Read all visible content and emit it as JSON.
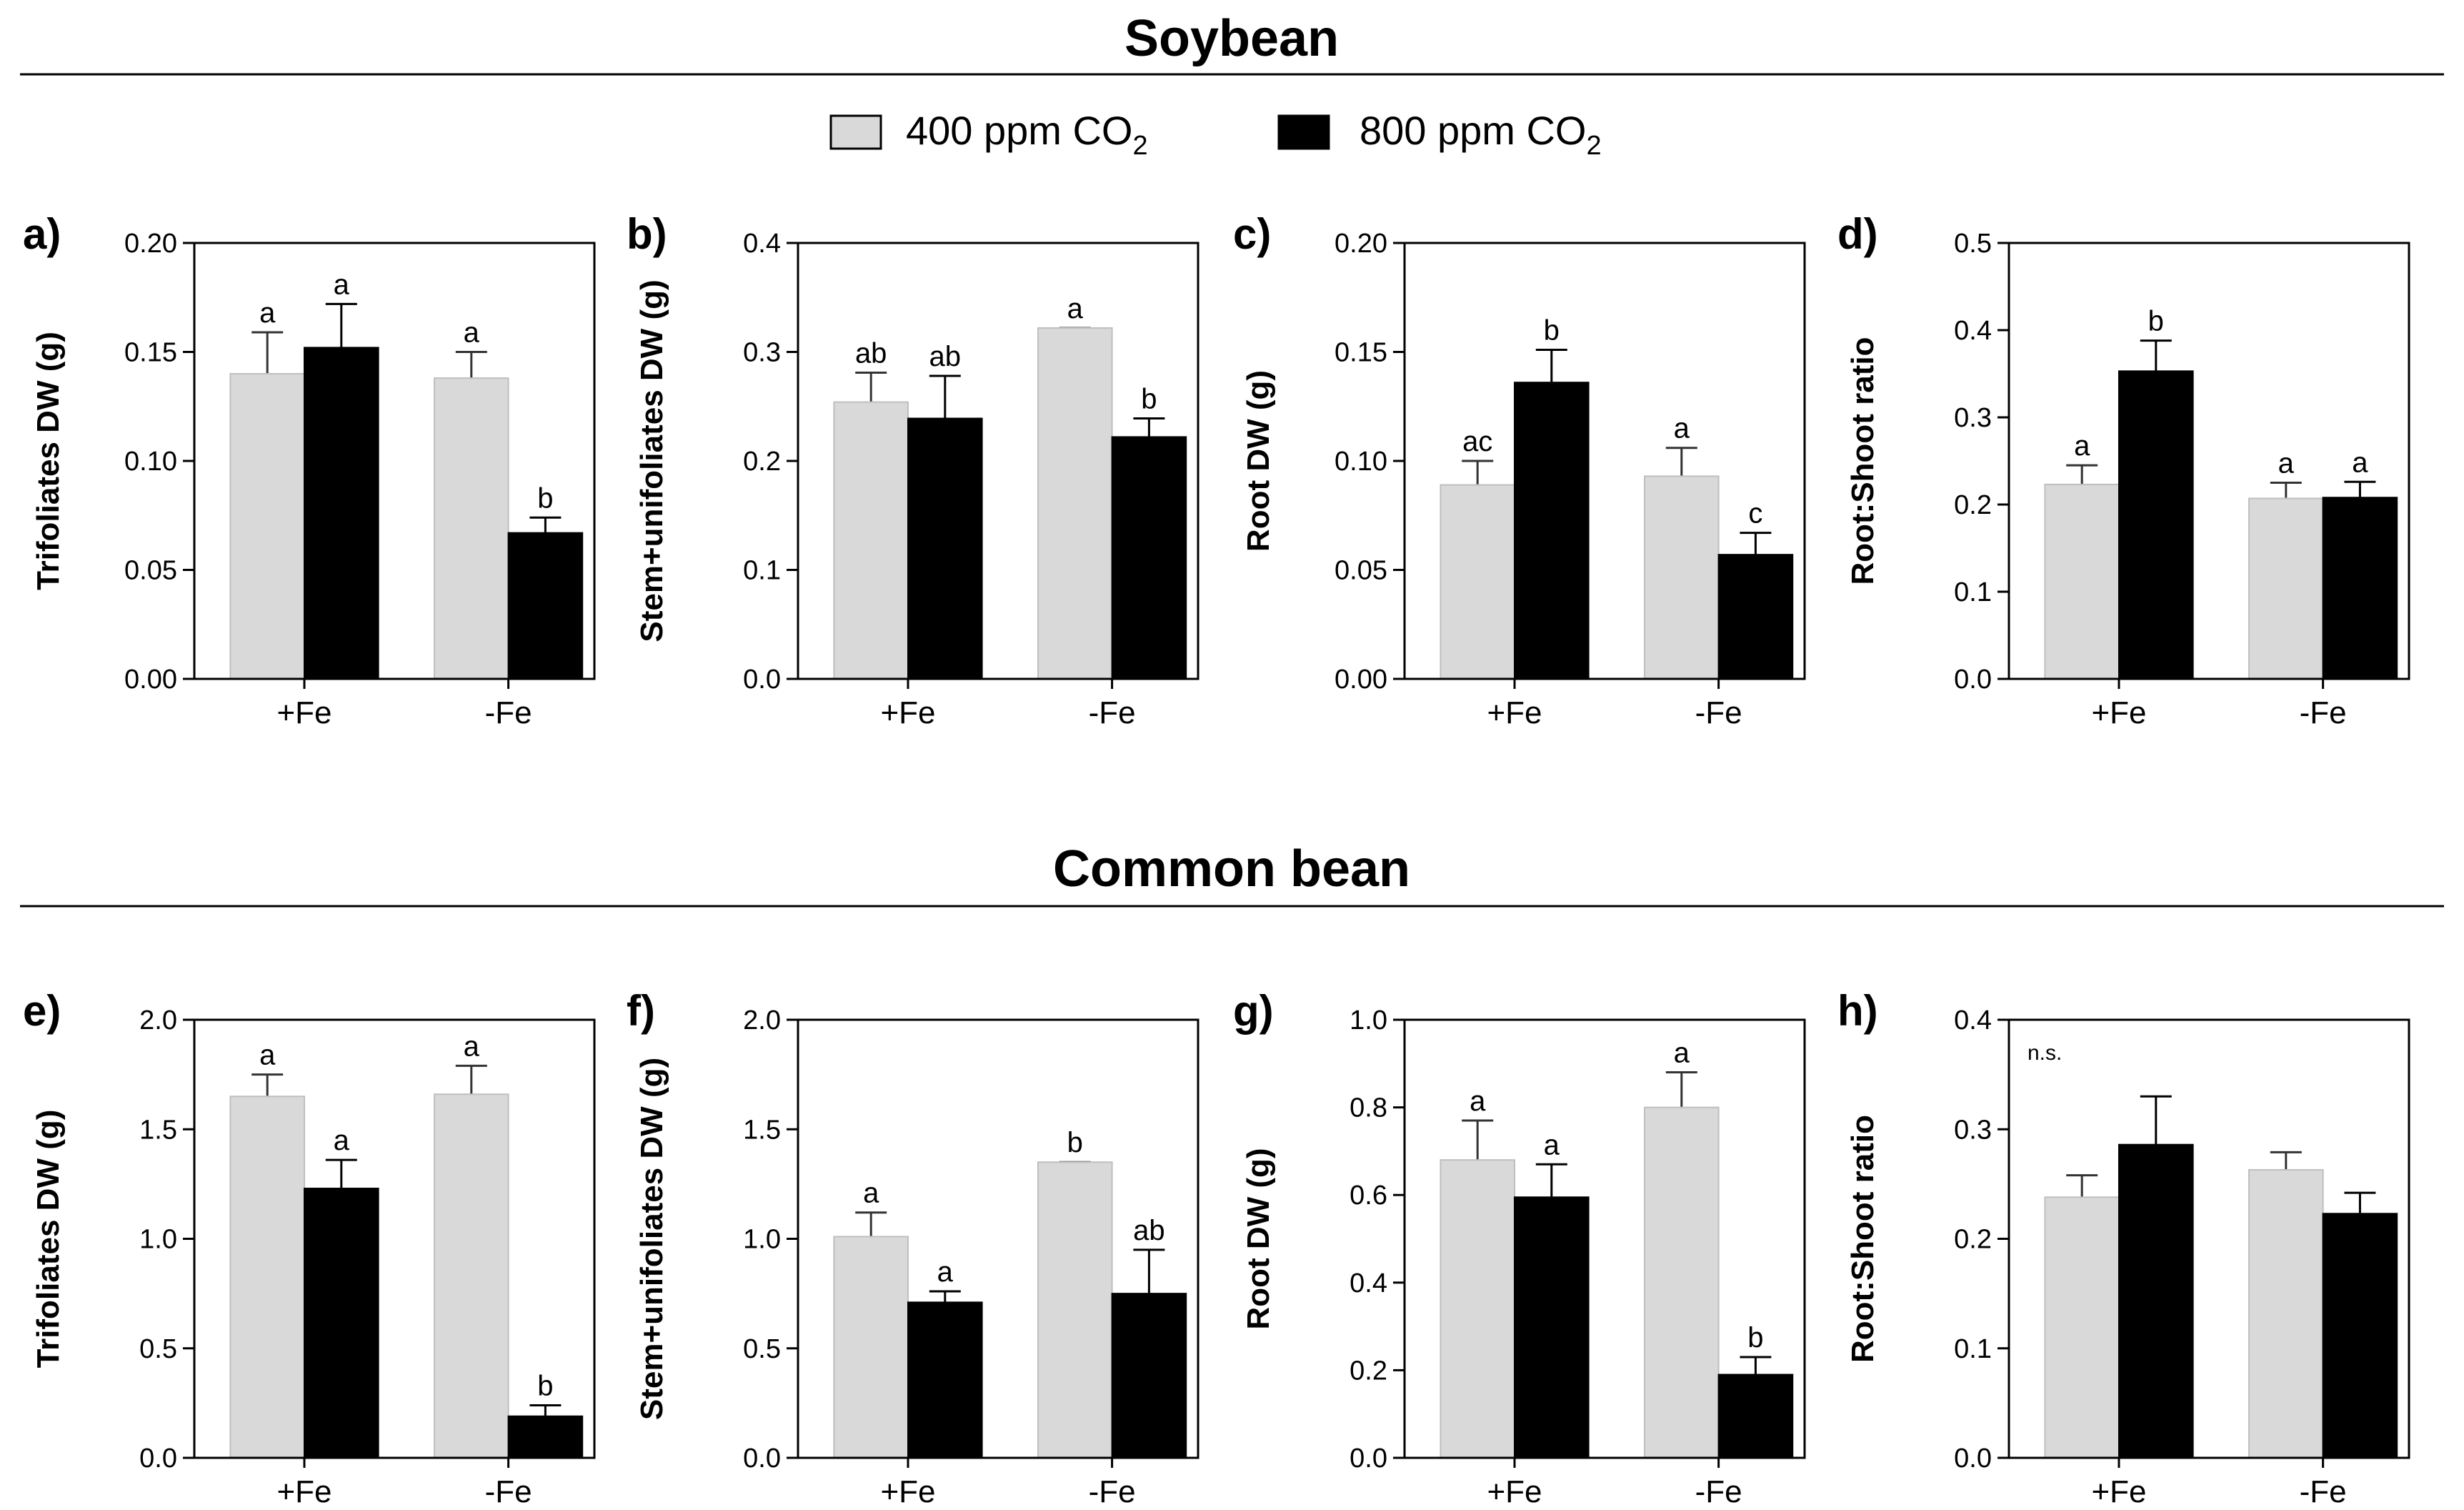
{
  "figure": {
    "sections": [
      {
        "title": "Soybean"
      },
      {
        "title": "Common bean"
      }
    ],
    "legend": {
      "items": [
        {
          "label": "400 ppm CO",
          "subscript": "2",
          "color": "#d9d9d9"
        },
        {
          "label": "800 ppm CO",
          "subscript": "2",
          "color": "#000000"
        }
      ]
    }
  },
  "chart_data": [
    {
      "panel": "a)",
      "type": "bar",
      "categories": [
        "+Fe",
        "-Fe"
      ],
      "ylabel": "Trifoliates DW (g)",
      "ylim": [
        0,
        0.2
      ],
      "ticks": [
        "0.00",
        "0.05",
        "0.10",
        "0.15",
        "0.20"
      ],
      "series": [
        {
          "values": [
            0.14,
            0.138
          ],
          "errors": [
            0.019,
            0.012
          ],
          "labels": [
            "a",
            "a"
          ]
        },
        {
          "values": [
            0.152,
            0.067
          ],
          "errors": [
            0.02,
            0.007
          ],
          "labels": [
            "a",
            "b"
          ]
        }
      ]
    },
    {
      "panel": "b)",
      "type": "bar",
      "categories": [
        "+Fe",
        "-Fe"
      ],
      "ylabel": "Stem+unifoliates DW (g)",
      "ylim": [
        0,
        0.4
      ],
      "ticks": [
        "0.0",
        "0.1",
        "0.2",
        "0.3",
        "0.4"
      ],
      "series": [
        {
          "values": [
            0.254,
            0.322
          ],
          "errors": [
            0.027,
            0.0
          ],
          "labels": [
            "ab",
            "a"
          ]
        },
        {
          "values": [
            0.239,
            0.222
          ],
          "errors": [
            0.039,
            0.017
          ],
          "labels": [
            "ab",
            "b"
          ]
        }
      ]
    },
    {
      "panel": "c)",
      "type": "bar",
      "categories": [
        "+Fe",
        "-Fe"
      ],
      "ylabel": "Root DW (g)",
      "ylim": [
        0,
        0.2
      ],
      "ticks": [
        "0.00",
        "0.05",
        "0.10",
        "0.15",
        "0.20"
      ],
      "series": [
        {
          "values": [
            0.089,
            0.093
          ],
          "errors": [
            0.011,
            0.013
          ],
          "labels": [
            "ac",
            "a"
          ]
        },
        {
          "values": [
            0.136,
            0.057
          ],
          "errors": [
            0.015,
            0.01
          ],
          "labels": [
            "b",
            "c"
          ]
        }
      ]
    },
    {
      "panel": "d)",
      "type": "bar",
      "categories": [
        "+Fe",
        "-Fe"
      ],
      "ylabel": "Root:Shoot ratio",
      "ylim": [
        0,
        0.5
      ],
      "ticks": [
        "0.0",
        "0.1",
        "0.2",
        "0.3",
        "0.4",
        "0.5"
      ],
      "series": [
        {
          "values": [
            0.223,
            0.207
          ],
          "errors": [
            0.022,
            0.018
          ],
          "labels": [
            "a",
            "a"
          ]
        },
        {
          "values": [
            0.353,
            0.208
          ],
          "errors": [
            0.035,
            0.018
          ],
          "labels": [
            "b",
            "a"
          ]
        }
      ]
    },
    {
      "panel": "e)",
      "type": "bar",
      "categories": [
        "+Fe",
        "-Fe"
      ],
      "ylabel": "Trifoliates DW (g)",
      "ylim": [
        0,
        2.0
      ],
      "ticks": [
        "0.0",
        "0.5",
        "1.0",
        "1.5",
        "2.0"
      ],
      "series": [
        {
          "values": [
            1.65,
            1.66
          ],
          "errors": [
            0.1,
            0.13
          ],
          "labels": [
            "a",
            "a"
          ]
        },
        {
          "values": [
            1.23,
            0.19
          ],
          "errors": [
            0.13,
            0.05
          ],
          "labels": [
            "a",
            "b"
          ]
        }
      ]
    },
    {
      "panel": "f)",
      "type": "bar",
      "categories": [
        "+Fe",
        "-Fe"
      ],
      "ylabel": "Stem+unifoliates DW (g)",
      "ylim": [
        0,
        2.0
      ],
      "ticks": [
        "0.0",
        "0.5",
        "1.0",
        "1.5",
        "2.0"
      ],
      "series": [
        {
          "values": [
            1.01,
            1.35
          ],
          "errors": [
            0.11,
            0.0
          ],
          "labels": [
            "a",
            "b"
          ]
        },
        {
          "values": [
            0.71,
            0.75
          ],
          "errors": [
            0.05,
            0.2
          ],
          "labels": [
            "a",
            "ab"
          ]
        }
      ]
    },
    {
      "panel": "g)",
      "type": "bar",
      "categories": [
        "+Fe",
        "-Fe"
      ],
      "ylabel": "Root DW (g)",
      "ylim": [
        0,
        1.0
      ],
      "ticks": [
        "0.0",
        "0.2",
        "0.4",
        "0.6",
        "0.8",
        "1.0"
      ],
      "series": [
        {
          "values": [
            0.68,
            0.8
          ],
          "errors": [
            0.09,
            0.08
          ],
          "labels": [
            "a",
            "a"
          ]
        },
        {
          "values": [
            0.595,
            0.19
          ],
          "errors": [
            0.075,
            0.04
          ],
          "labels": [
            "a",
            "b"
          ]
        }
      ]
    },
    {
      "panel": "h)",
      "type": "bar",
      "categories": [
        "+Fe",
        "-Fe"
      ],
      "ylabel": "Root:Shoot ratio",
      "ylim": [
        0,
        0.4
      ],
      "ticks": [
        "0.0",
        "0.1",
        "0.2",
        "0.3",
        "0.4"
      ],
      "annotation": "n.s.",
      "series": [
        {
          "values": [
            0.238,
            0.263
          ],
          "errors": [
            0.02,
            0.016
          ],
          "labels": [
            "",
            ""
          ]
        },
        {
          "values": [
            0.286,
            0.223
          ],
          "errors": [
            0.044,
            0.019
          ],
          "labels": [
            "",
            ""
          ]
        }
      ]
    }
  ]
}
